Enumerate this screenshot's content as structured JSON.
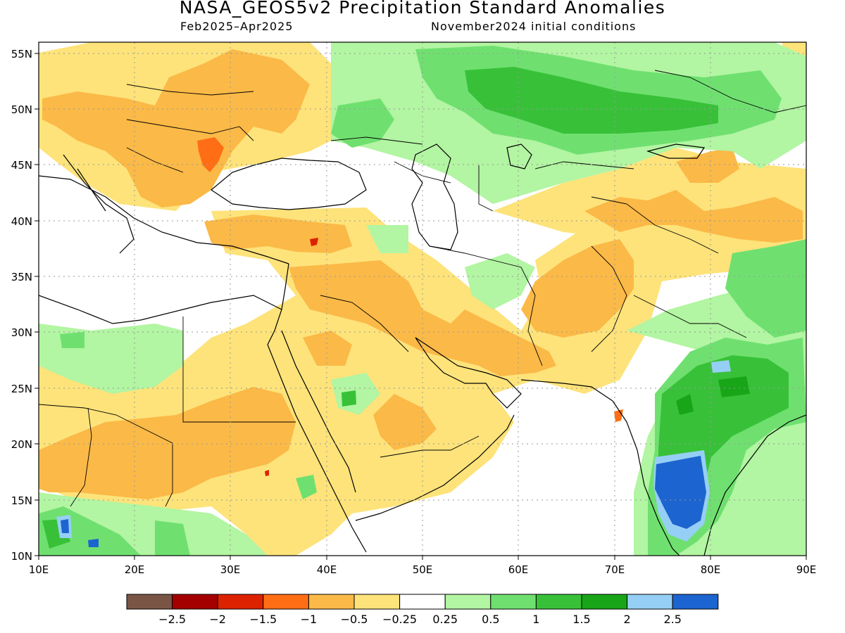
{
  "header": {
    "title": "NASA_GEOS5v2 Precipitation Standard Anomalies",
    "period": "Feb2025–Apr2025",
    "init": "November2024 initial conditions"
  },
  "map": {
    "lon_range": [
      10,
      90
    ],
    "lat_range": [
      10,
      56
    ],
    "lon_ticks": [
      "10E",
      "20E",
      "30E",
      "40E",
      "50E",
      "60E",
      "70E",
      "80E",
      "90E"
    ],
    "lat_ticks": [
      "10N",
      "15N",
      "20N",
      "25N",
      "30N",
      "35N",
      "40N",
      "45N",
      "50N",
      "55N"
    ]
  },
  "colorbar": {
    "colors": [
      "#7a5545",
      "#a50000",
      "#dd2200",
      "#ff6e14",
      "#fbb947",
      "#fde37a",
      "#ffffff",
      "#b2f5a2",
      "#6fe070",
      "#38c138",
      "#18a518",
      "#96cff5",
      "#1c64d0"
    ],
    "labels": [
      "−2.5",
      "−2",
      "−1.5",
      "−1",
      "−0.5",
      "−0.25",
      "0.25",
      "0.5",
      "1",
      "1.5",
      "2",
      "2.5"
    ]
  },
  "palette": {
    "dry_light": "#fde37a",
    "dry_mid": "#fbb947",
    "dry_strong": "#ff6e14",
    "dry_very": "#dd2200",
    "wet_light": "#b2f5a2",
    "wet_mid": "#6fe070",
    "wet_strong": "#38c138",
    "wet_very": "#18a518",
    "wet_extreme": "#96cff5",
    "wet_max": "#1c64d0"
  }
}
